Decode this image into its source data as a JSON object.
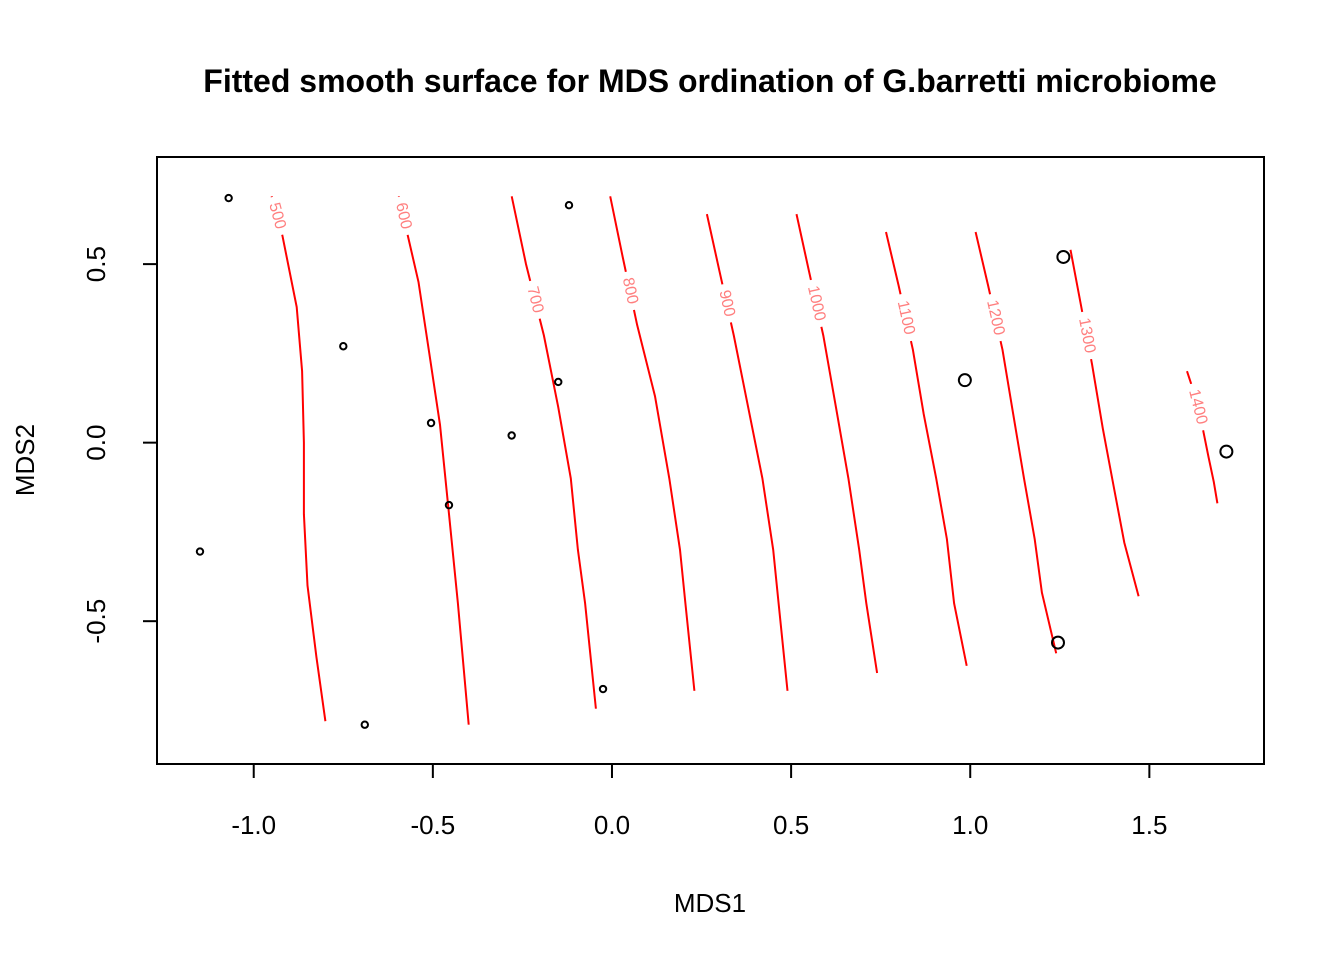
{
  "chart_data": {
    "type": "scatter",
    "title": "Fitted smooth surface for MDS ordination of G.barretti microbiome",
    "xlabel": "MDS1",
    "ylabel": "MDS2",
    "xlim": [
      -1.27,
      1.82
    ],
    "ylim": [
      -0.9,
      0.8
    ],
    "xticks": [
      -1.0,
      -0.5,
      0.0,
      0.5,
      1.0,
      1.5
    ],
    "xtick_labels": [
      "-1.0",
      "-0.5",
      "0.0",
      "0.5",
      "1.0",
      "1.5"
    ],
    "yticks": [
      -0.5,
      0.0,
      0.5
    ],
    "ytick_labels": [
      "-0.5",
      "0.0",
      "0.5"
    ],
    "grid": false,
    "colors": {
      "points": "#000000",
      "contours": "#ff0000",
      "contour_labels": "#ff7f7f"
    },
    "points": [
      {
        "x": -1.07,
        "y": 0.685,
        "size": "small"
      },
      {
        "x": -1.15,
        "y": -0.305,
        "size": "small"
      },
      {
        "x": -0.75,
        "y": 0.27,
        "size": "small"
      },
      {
        "x": -0.69,
        "y": -0.79,
        "size": "small"
      },
      {
        "x": -0.505,
        "y": 0.055,
        "size": "small"
      },
      {
        "x": -0.455,
        "y": -0.175,
        "size": "small"
      },
      {
        "x": -0.28,
        "y": 0.02,
        "size": "small"
      },
      {
        "x": -0.15,
        "y": 0.17,
        "size": "small"
      },
      {
        "x": -0.12,
        "y": 0.665,
        "size": "small"
      },
      {
        "x": -0.025,
        "y": -0.69,
        "size": "small"
      },
      {
        "x": 0.985,
        "y": 0.175,
        "size": "large"
      },
      {
        "x": 1.26,
        "y": 0.52,
        "size": "large"
      },
      {
        "x": 1.245,
        "y": -0.56,
        "size": "large"
      },
      {
        "x": 1.715,
        "y": -0.025,
        "size": "large"
      }
    ],
    "contours": [
      {
        "level": "500",
        "label": "500",
        "label_at": 0,
        "line": [
          [
            -0.95,
            0.69
          ],
          [
            -0.92,
            0.58
          ],
          [
            -0.88,
            0.38
          ],
          [
            -0.865,
            0.2
          ],
          [
            -0.86,
            0.0
          ],
          [
            -0.86,
            -0.2
          ],
          [
            -0.85,
            -0.4
          ],
          [
            -0.825,
            -0.6
          ],
          [
            -0.8,
            -0.78
          ]
        ]
      },
      {
        "level": "600",
        "label": "600",
        "label_at": 0,
        "line": [
          [
            -0.595,
            0.69
          ],
          [
            -0.57,
            0.58
          ],
          [
            -0.54,
            0.45
          ],
          [
            -0.51,
            0.25
          ],
          [
            -0.48,
            0.05
          ],
          [
            -0.455,
            -0.2
          ],
          [
            -0.43,
            -0.45
          ],
          [
            -0.4,
            -0.79
          ]
        ]
      },
      {
        "level": "700",
        "label": "700",
        "label_at": 1,
        "line": [
          [
            -0.28,
            0.69
          ],
          [
            -0.24,
            0.5
          ],
          [
            -0.19,
            0.3
          ],
          [
            -0.15,
            0.1
          ],
          [
            -0.115,
            -0.1
          ],
          [
            -0.095,
            -0.3
          ],
          [
            -0.075,
            -0.45
          ],
          [
            -0.045,
            -0.745
          ]
        ]
      },
      {
        "level": "800",
        "label": "800",
        "label_at": 1,
        "line": [
          [
            -0.005,
            0.69
          ],
          [
            0.03,
            0.52
          ],
          [
            0.07,
            0.33
          ],
          [
            0.12,
            0.13
          ],
          [
            0.16,
            -0.1
          ],
          [
            0.19,
            -0.3
          ],
          [
            0.205,
            -0.45
          ],
          [
            0.23,
            -0.695
          ]
        ]
      },
      {
        "level": "900",
        "label": "900",
        "label_at": 1,
        "line": [
          [
            0.265,
            0.64
          ],
          [
            0.3,
            0.48
          ],
          [
            0.34,
            0.3
          ],
          [
            0.38,
            0.1
          ],
          [
            0.42,
            -0.1
          ],
          [
            0.45,
            -0.3
          ],
          [
            0.465,
            -0.45
          ],
          [
            0.49,
            -0.695
          ]
        ]
      },
      {
        "level": "1000",
        "label": "1000",
        "label_at": 1,
        "line": [
          [
            0.515,
            0.64
          ],
          [
            0.55,
            0.48
          ],
          [
            0.59,
            0.3
          ],
          [
            0.625,
            0.1
          ],
          [
            0.66,
            -0.1
          ],
          [
            0.69,
            -0.3
          ],
          [
            0.71,
            -0.45
          ],
          [
            0.74,
            -0.645
          ]
        ]
      },
      {
        "level": "1100",
        "label": "1100",
        "label_at": 1,
        "line": [
          [
            0.765,
            0.59
          ],
          [
            0.8,
            0.44
          ],
          [
            0.84,
            0.26
          ],
          [
            0.87,
            0.08
          ],
          [
            0.905,
            -0.1
          ],
          [
            0.935,
            -0.27
          ],
          [
            0.955,
            -0.45
          ],
          [
            0.99,
            -0.625
          ]
        ]
      },
      {
        "level": "1200",
        "label": "1200",
        "label_at": 1,
        "line": [
          [
            1.015,
            0.59
          ],
          [
            1.05,
            0.44
          ],
          [
            1.09,
            0.26
          ],
          [
            1.12,
            0.08
          ],
          [
            1.15,
            -0.1
          ],
          [
            1.18,
            -0.27
          ],
          [
            1.2,
            -0.42
          ],
          [
            1.24,
            -0.59
          ]
        ]
      },
      {
        "level": "1300",
        "label": "1300",
        "label_at": 1,
        "line": [
          [
            1.28,
            0.54
          ],
          [
            1.31,
            0.38
          ],
          [
            1.34,
            0.22
          ],
          [
            1.37,
            0.04
          ],
          [
            1.4,
            -0.12
          ],
          [
            1.43,
            -0.28
          ],
          [
            1.47,
            -0.43
          ]
        ]
      },
      {
        "level": "1400",
        "label": "1400",
        "label_at": 1,
        "line": [
          [
            1.605,
            0.2
          ],
          [
            1.625,
            0.14
          ],
          [
            1.645,
            0.06
          ],
          [
            1.665,
            -0.04
          ],
          [
            1.68,
            -0.11
          ],
          [
            1.69,
            -0.17
          ]
        ]
      }
    ]
  }
}
